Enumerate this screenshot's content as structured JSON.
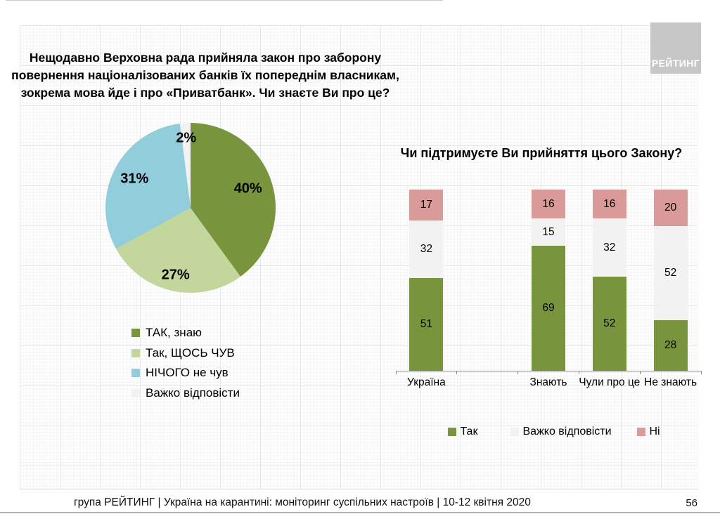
{
  "header": {
    "logo_text": "РЕЙТИНГ"
  },
  "left_panel": {
    "title_lines": [
      "Нещодавно Верховна рада прийняла закон про заборону",
      "повернення націоналізованих банків їх попереднім власникам,",
      "зокрема мова йде і про «Приватбанк». Чи знаєте Ви про це?"
    ]
  },
  "right_panel": {
    "title": "Чи підтримуєте Ви прийняття цього Закону?"
  },
  "footer": {
    "text": "група РЕЙТИНГ | Україна на карантині: моніторинг суспільних настроїв  | 10-12 квітня  2020",
    "page_number": "56"
  },
  "chart_data": [
    {
      "type": "pie",
      "title": "Нещодавно Верховна рада прийняла закон про заборону повернення націоналізованих банків їх попереднім власникам, зокрема мова йде і про «Приватбанк». Чи знаєте Ви про це?",
      "value_suffix": "%",
      "start_angle_deg": 0,
      "direction": "clockwise",
      "legend_position": "bottom-left",
      "slices": [
        {
          "label": "ТАК, знаю",
          "value": 40,
          "color": "#78953E",
          "label_r": 0.71
        },
        {
          "label": "Так, ЩОСЬ ЧУВ",
          "value": 27,
          "color": "#C3D69B",
          "label_r": 0.81
        },
        {
          "label": "НІЧОГО не чув",
          "value": 31,
          "color": "#92CDDC",
          "label_r": 0.74
        },
        {
          "label": "Важко відповісти",
          "value": 2,
          "color": "#F2F2F2",
          "label_r": 0.82
        }
      ]
    },
    {
      "type": "bar",
      "stacked": true,
      "title": "Чи підтримуєте Ви прийняття цього Закону?",
      "categories": [
        "Україна",
        "Знають",
        "Чули про це",
        "Не знають"
      ],
      "category_slots": [
        0,
        2,
        3,
        4
      ],
      "total_slots": 5,
      "ylim": [
        0,
        100
      ],
      "grid": false,
      "legend_position": "bottom",
      "series": [
        {
          "name": "Так",
          "color": "#78953E",
          "values": [
            51,
            69,
            52,
            28
          ]
        },
        {
          "name": "Важко відповісти",
          "color": "#F2F2F2",
          "values": [
            32,
            15,
            32,
            52
          ]
        },
        {
          "name": "Ні",
          "color": "#D99A99",
          "values": [
            17,
            16,
            16,
            20
          ]
        }
      ]
    }
  ]
}
